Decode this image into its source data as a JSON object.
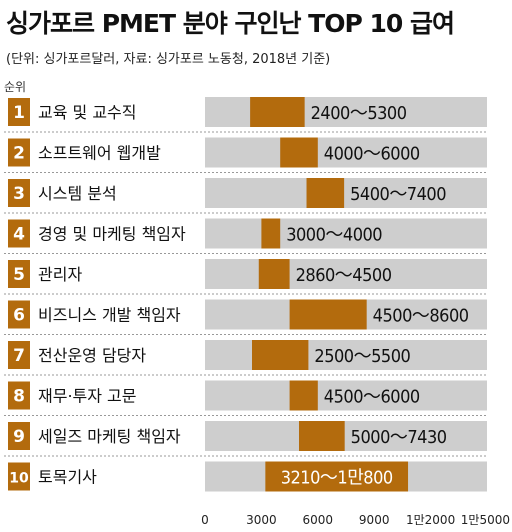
{
  "title": "싱가포르 PMET 분야 구인난 TOP 10 급여",
  "subtitle": "(단위: 싱가포르달러, 자료: 싱가포르 노동청, 2018년 기준)",
  "rank_header": "순위",
  "colors": {
    "rank_badge": "#b36b0d",
    "range_bar": "#b36b0d",
    "track": "#cecece",
    "divider": "#999999"
  },
  "chart_data": {
    "type": "bar",
    "orientation": "horizontal",
    "subtype": "floating-range",
    "title": "싱가포르 PMET 분야 구인난 TOP 10 급여",
    "subtitle": "(단위: 싱가포르달러, 자료: 싱가포르 노동청, 2018년 기준)",
    "xlim": [
      0,
      15000
    ],
    "x_ticks": [
      0,
      3000,
      6000,
      9000,
      12000,
      15000
    ],
    "x_tick_labels": [
      "0",
      "3000",
      "6000",
      "9000",
      "1만2000",
      "1만5000"
    ],
    "categories": [
      {
        "rank": "1",
        "name": "교육 및 교수직",
        "min": 2400,
        "max": 5300,
        "label": "2400～5300"
      },
      {
        "rank": "2",
        "name": "소프트웨어 웹개발",
        "min": 4000,
        "max": 6000,
        "label": "4000～6000"
      },
      {
        "rank": "3",
        "name": "시스템 분석",
        "min": 5400,
        "max": 7400,
        "label": "5400～7400"
      },
      {
        "rank": "4",
        "name": "경영 및 마케팅 책임자",
        "min": 3000,
        "max": 4000,
        "label": "3000～4000"
      },
      {
        "rank": "5",
        "name": "관리자",
        "min": 2860,
        "max": 4500,
        "label": "2860～4500"
      },
      {
        "rank": "6",
        "name": "비즈니스 개발 책임자",
        "min": 4500,
        "max": 8600,
        "label": "4500～8600"
      },
      {
        "rank": "7",
        "name": "전산운영 담당자",
        "min": 2500,
        "max": 5500,
        "label": "2500～5500"
      },
      {
        "rank": "8",
        "name": "재무·투자 고문",
        "min": 4500,
        "max": 6000,
        "label": "4500～6000"
      },
      {
        "rank": "9",
        "name": "세일즈 마케팅 책임자",
        "min": 5000,
        "max": 7430,
        "label": "5000～7430"
      },
      {
        "rank": "10",
        "name": "토목기사",
        "min": 3210,
        "max": 10800,
        "label": "3210～1만800"
      }
    ]
  }
}
